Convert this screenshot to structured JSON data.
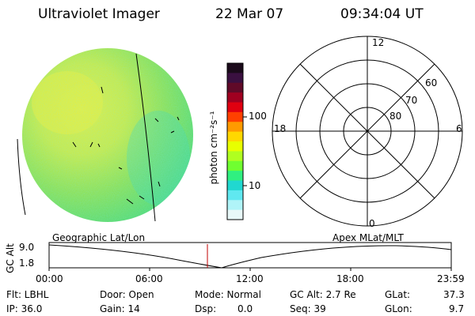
{
  "header": {
    "title": "Ultraviolet Imager",
    "date": "22 Mar 07",
    "time": "09:34:04 UT"
  },
  "colorbar": {
    "label": "photon cm⁻²s⁻¹",
    "ticks": [
      "100",
      "10"
    ],
    "colors": [
      "#1a0a1a",
      "#3a1040",
      "#600a28",
      "#a00020",
      "#e00010",
      "#ff4000",
      "#ff9a00",
      "#ffd800",
      "#e8ff00",
      "#b0ff20",
      "#70ff30",
      "#30f080",
      "#20d8d0",
      "#60e8f0",
      "#b0f4f8",
      "#e8f8f8"
    ]
  },
  "polar": {
    "top_label": "12",
    "bottom_label": "0",
    "left_label": "18",
    "right_label": "6",
    "lat_labels": [
      "60",
      "70",
      "80"
    ]
  },
  "timeline": {
    "ylabel": "GC Alt",
    "ymax": "9.0",
    "ymin": "1.8",
    "left_title": "Geographic Lat/Lon",
    "right_title": "Apex MLat/MLT",
    "xticks": [
      "00:00",
      "06:00",
      "12:00",
      "18:00",
      "23:59"
    ]
  },
  "footer": {
    "flt": "Flt: LBHL",
    "door": "Door: Open",
    "mode": "Mode: Normal",
    "gcalt": "GC Alt: 2.7 Re",
    "glat_label": "GLat:",
    "glat_value": "37.3",
    "ip": "IP: 36.0",
    "gain": "Gain: 14",
    "dsp_label": "Dsp:",
    "dsp_value": "0.0",
    "seq": "Seq: 39",
    "glon_label": "GLon:",
    "glon_value": "9.7"
  }
}
